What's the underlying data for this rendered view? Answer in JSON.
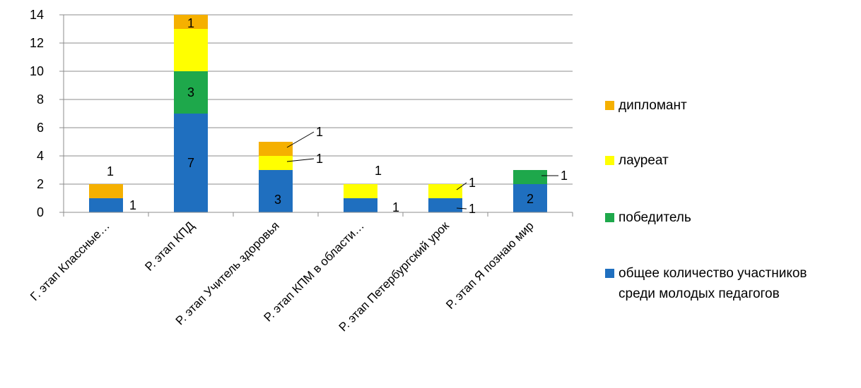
{
  "chart_data": {
    "type": "bar",
    "stacked": true,
    "categories": [
      "Г. этап Классные…",
      "Р. этап КПД",
      "Р. этап  Учитель здоровья",
      "Р. этап КПМ в области…",
      "Р. этап Петербургский урок",
      "Р. этап Я познаю мир"
    ],
    "series": [
      {
        "name": "общее количество участников среди молодых педагогов",
        "color": "#1f6fbf",
        "values": [
          1,
          7,
          3,
          1,
          1,
          2
        ]
      },
      {
        "name": "победитель",
        "color": "#1ea84b",
        "values": [
          0,
          3,
          0,
          0,
          0,
          1
        ]
      },
      {
        "name": "лауреат",
        "color": "#ffff00",
        "values": [
          0,
          3,
          1,
          1,
          1,
          0
        ]
      },
      {
        "name": "дипломант",
        "color": "#f5b000",
        "values": [
          1,
          1,
          1,
          0,
          0,
          0
        ]
      }
    ],
    "data_labels": [
      {
        "category": 0,
        "series": 0,
        "text": "1"
      },
      {
        "category": 0,
        "series": 3,
        "text": "1"
      },
      {
        "category": 1,
        "series": 0,
        "text": "7"
      },
      {
        "category": 1,
        "series": 1,
        "text": "3"
      },
      {
        "category": 1,
        "series": 3,
        "text": "1"
      },
      {
        "category": 2,
        "series": 0,
        "text": "3"
      },
      {
        "category": 2,
        "series": 2,
        "text": "1"
      },
      {
        "category": 2,
        "series": 3,
        "text": "1"
      },
      {
        "category": 3,
        "series": 0,
        "text": "1"
      },
      {
        "category": 3,
        "series": 2,
        "text": "1"
      },
      {
        "category": 4,
        "series": 0,
        "text": "1"
      },
      {
        "category": 4,
        "series": 2,
        "text": "1"
      },
      {
        "category": 5,
        "series": 0,
        "text": "2"
      },
      {
        "category": 5,
        "series": 1,
        "text": "1"
      }
    ],
    "ylim": [
      0,
      14
    ],
    "yticks": [
      0,
      2,
      4,
      6,
      8,
      10,
      12,
      14
    ],
    "grid": true,
    "legend_position": "right",
    "legend_order": [
      "дипломант",
      "лауреат",
      "победитель",
      "общее количество участников среди молодых педагогов"
    ]
  },
  "legend": {
    "items": [
      {
        "label": "дипломант",
        "color": "#f5b000"
      },
      {
        "label": "лауреат",
        "color": "#ffff00"
      },
      {
        "label": "победитель",
        "color": "#1ea84b"
      },
      {
        "label": "общее количество участников\nсреди молодых педагогов",
        "color": "#1f6fbf"
      }
    ]
  }
}
